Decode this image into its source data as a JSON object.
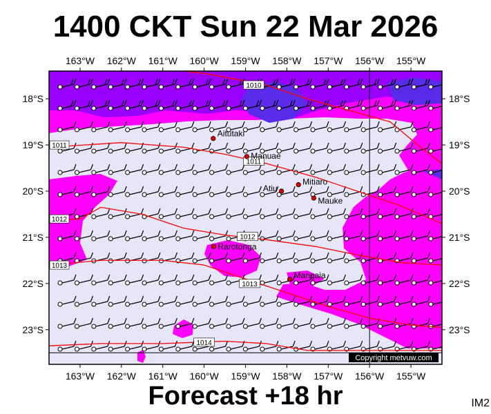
{
  "title": "1400 CKT Sun 22 Mar 2026",
  "footer": "Forecast +18 hr",
  "corner_label": "IM2",
  "copyright": "Copyright metvuw.com",
  "colors": {
    "background": "#e6e6f8",
    "wind_moderate": "#ff00ff",
    "wind_strong": "#9900ff",
    "wind_strongest": "#5a2be8",
    "isobar": "#ff0000",
    "town": "#dd0000",
    "reference_line": "#000000"
  },
  "axes": {
    "lon_labels": [
      "163°W",
      "162°W",
      "161°W",
      "160°W",
      "159°W",
      "158°W",
      "157°W",
      "156°W",
      "155°W"
    ],
    "lon_values": [
      -163,
      -162,
      -161,
      -160,
      -159,
      -158,
      -157,
      -156,
      -155
    ],
    "lat_labels": [
      "18°S",
      "19°S",
      "20°S",
      "21°S",
      "22°S",
      "23°S"
    ],
    "lat_values": [
      -18,
      -19,
      -20,
      -21,
      -22,
      -23
    ],
    "lon_range": [
      -163.75,
      -154.25
    ],
    "lat_range": [
      -23.75,
      -17.4
    ]
  },
  "reference_meridian": -156,
  "reference_parallel": -23.5,
  "towns": [
    {
      "name": "Aitutaki",
      "lon": -159.78,
      "lat": -18.86
    },
    {
      "name": "Manuae",
      "lon": -158.97,
      "lat": -19.25
    },
    {
      "name": "Mitiaro",
      "lon": -157.72,
      "lat": -19.86
    },
    {
      "name": "Atiu",
      "lon": -158.13,
      "lat": -20.0
    },
    {
      "name": "Mauke",
      "lon": -157.35,
      "lat": -20.15
    },
    {
      "name": "Rarotonga",
      "lon": -159.77,
      "lat": -21.2
    },
    {
      "name": "Mangaia",
      "lon": -157.93,
      "lat": -21.91
    }
  ],
  "isobars": [
    {
      "label": "1010",
      "label_at": [
        -158.8,
        -17.7
      ],
      "points": [
        [
          -163.75,
          -17.0
        ],
        [
          -162,
          -17.25
        ],
        [
          -160,
          -17.45
        ],
        [
          -158.5,
          -17.7
        ],
        [
          -157.5,
          -18.0
        ],
        [
          -156.5,
          -18.25
        ],
        [
          -155.5,
          -18.5
        ],
        [
          -154.7,
          -19.1
        ],
        [
          -154.25,
          -19.4
        ]
      ]
    },
    {
      "label": "1011",
      "label_at": [
        -158.8,
        -19.35
      ],
      "points": [
        [
          -163.75,
          -19.05
        ],
        [
          -162,
          -18.95
        ],
        [
          -160.5,
          -19.05
        ],
        [
          -159.5,
          -19.2
        ],
        [
          -158.5,
          -19.4
        ],
        [
          -157.3,
          -19.7
        ],
        [
          -156.3,
          -20.0
        ],
        [
          -155.3,
          -20.3
        ],
        [
          -154.25,
          -20.7
        ]
      ]
    },
    {
      "label": "1012",
      "label_at": [
        -158.95,
        -20.98
      ],
      "points": [
        [
          -163.75,
          -20.65
        ],
        [
          -163,
          -20.6
        ],
        [
          -162.5,
          -20.35
        ],
        [
          -161.5,
          -20.5
        ],
        [
          -160.5,
          -20.8
        ],
        [
          -159.5,
          -20.95
        ],
        [
          -158.5,
          -21.05
        ],
        [
          -157.3,
          -21.2
        ],
        [
          -156.2,
          -21.4
        ],
        [
          -155.2,
          -21.55
        ],
        [
          -154.25,
          -21.6
        ]
      ]
    },
    {
      "label": "1013",
      "label_at": [
        -158.9,
        -22.0
      ],
      "points": [
        [
          -163.75,
          -21.6
        ],
        [
          -162.5,
          -21.5
        ],
        [
          -161,
          -21.5
        ],
        [
          -160,
          -21.6
        ],
        [
          -159,
          -21.9
        ],
        [
          -158,
          -22.2
        ],
        [
          -157,
          -22.5
        ],
        [
          -156,
          -22.75
        ],
        [
          -155,
          -22.9
        ],
        [
          -154.25,
          -22.95
        ]
      ]
    },
    {
      "label": "1014",
      "label_at": [
        -160.0,
        -23.27
      ],
      "points": [
        [
          -163.75,
          -23.35
        ],
        [
          -162.5,
          -23.3
        ],
        [
          -161,
          -23.3
        ],
        [
          -159.5,
          -23.25
        ],
        [
          -158.5,
          -23.3
        ],
        [
          -157.5,
          -23.45
        ],
        [
          -156.5,
          -23.45
        ],
        [
          -155.5,
          -23.45
        ],
        [
          -154.25,
          -23.45
        ]
      ]
    }
  ]
}
